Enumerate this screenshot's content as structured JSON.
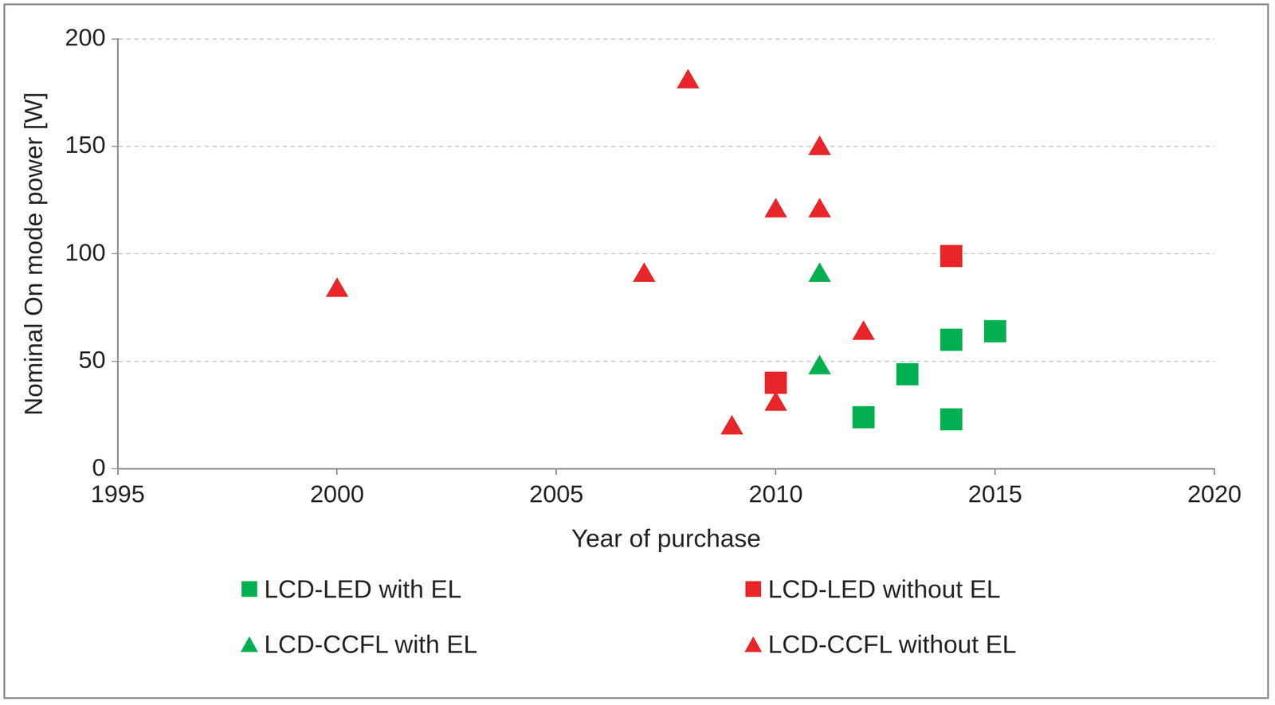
{
  "chart_data": {
    "type": "scatter",
    "xlabel": "Year of purchase",
    "ylabel": "Nominal On mode power [W]",
    "xlim": [
      1995,
      2020
    ],
    "xticks": [
      1995,
      2000,
      2005,
      2010,
      2015,
      2020
    ],
    "ylim": [
      0,
      200
    ],
    "yticks": [
      0,
      50,
      100,
      150,
      200
    ],
    "grid": true,
    "legend": "bottom",
    "series": [
      {
        "name": "LCD-LED with EL",
        "color": "#00b050",
        "marker": "square",
        "x": [
          2012,
          2013,
          2014,
          2014,
          2015
        ],
        "values": [
          24,
          44,
          60,
          23,
          64
        ]
      },
      {
        "name": "LCD-LED without EL",
        "color": "#e8262a",
        "marker": "square",
        "x": [
          2010,
          2014
        ],
        "values": [
          40,
          99
        ]
      },
      {
        "name": "LCD-CCFL with EL",
        "color": "#00b050",
        "marker": "triangle",
        "x": [
          2011,
          2011
        ],
        "values": [
          90,
          47
        ]
      },
      {
        "name": "LCD-CCFL without EL",
        "color": "#e8262a",
        "marker": "triangle",
        "x": [
          2000,
          2007,
          2008,
          2009,
          2010,
          2010,
          2011,
          2011,
          2012
        ],
        "values": [
          83,
          90,
          180,
          19,
          120,
          30,
          149,
          120,
          63
        ]
      }
    ]
  }
}
